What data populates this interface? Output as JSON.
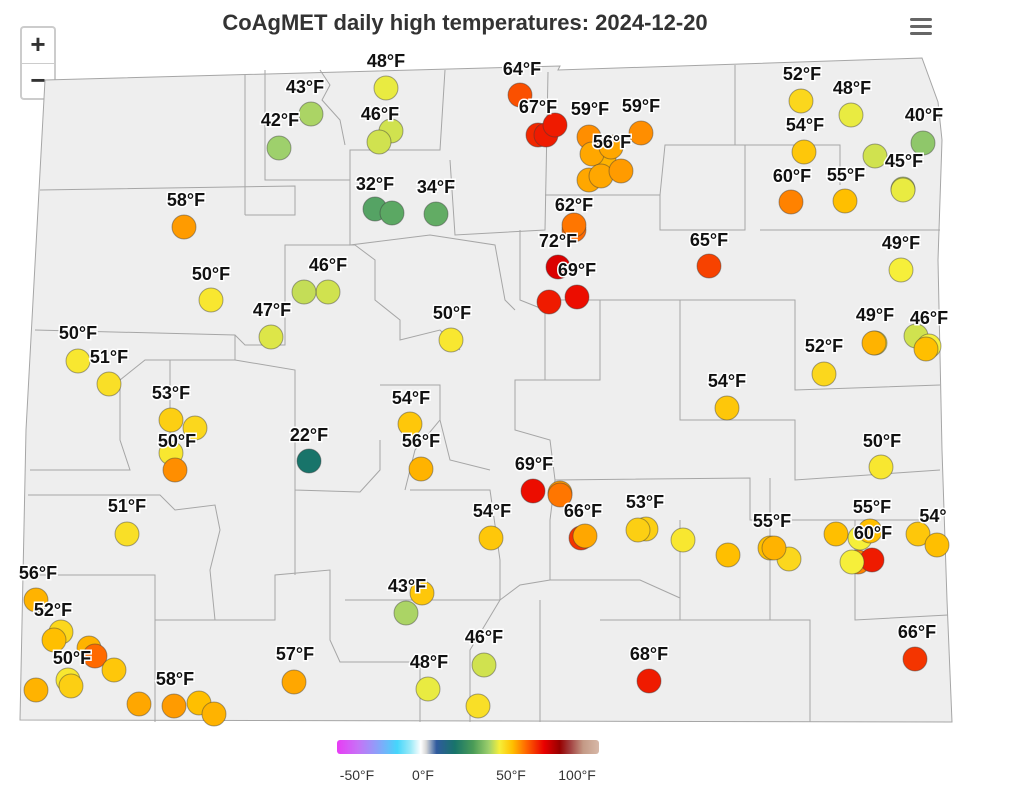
{
  "title": "CoAgMET daily high temperatures: 2024-12-20",
  "controls": {
    "zoom_in": "+",
    "zoom_out": "−",
    "menu_icon": "hamburger-menu-icon"
  },
  "legend": {
    "ticks": [
      "-50°F",
      "0°F",
      "50°F",
      "100°F"
    ]
  },
  "colors": {
    "background": "#ffffff",
    "county_fill": "#eeeeee",
    "county_border": "#a6a6a6"
  },
  "stations": [
    {
      "temp": 48,
      "label": "48°F"
    },
    {
      "temp": 43,
      "label": "43°F"
    },
    {
      "temp": 42,
      "label": "42°F"
    },
    {
      "temp": 46,
      "label": "46°F"
    },
    {
      "temp": 32,
      "label": "32°F"
    },
    {
      "temp": 34,
      "label": "34°F"
    },
    {
      "temp": 58,
      "label": "58°F"
    },
    {
      "temp": 64,
      "label": "64°F"
    },
    {
      "temp": 67,
      "label": "67°F"
    },
    {
      "temp": 59,
      "label": "59°F"
    },
    {
      "temp": 59,
      "label": "59°F"
    },
    {
      "temp": 56,
      "label": "56°F"
    },
    {
      "temp": 62,
      "label": "62°F"
    },
    {
      "temp": 72,
      "label": "72°F"
    },
    {
      "temp": 69,
      "label": "69°F"
    },
    {
      "temp": 65,
      "label": "65°F"
    },
    {
      "temp": 52,
      "label": "52°F"
    },
    {
      "temp": 48,
      "label": "48°F"
    },
    {
      "temp": 40,
      "label": "40°F"
    },
    {
      "temp": 54,
      "label": "54°F"
    },
    {
      "temp": 60,
      "label": "60°F"
    },
    {
      "temp": 55,
      "label": "55°F"
    },
    {
      "temp": 45,
      "label": "45°F"
    },
    {
      "temp": 49,
      "label": "49°F"
    },
    {
      "temp": 50,
      "label": "50°F"
    },
    {
      "temp": 46,
      "label": "46°F"
    },
    {
      "temp": 47,
      "label": "47°F"
    },
    {
      "temp": 50,
      "label": "50°F"
    },
    {
      "temp": 50,
      "label": "50°F"
    },
    {
      "temp": 51,
      "label": "51°F"
    },
    {
      "temp": 53,
      "label": "53°F"
    },
    {
      "temp": 50,
      "label": "50°F"
    },
    {
      "temp": 22,
      "label": "22°F"
    },
    {
      "temp": 54,
      "label": "54°F"
    },
    {
      "temp": 56,
      "label": "56°F"
    },
    {
      "temp": 69,
      "label": "69°F"
    },
    {
      "temp": 49,
      "label": "49°F"
    },
    {
      "temp": 46,
      "label": "46°F"
    },
    {
      "temp": 52,
      "label": "52°F"
    },
    {
      "temp": 54,
      "label": "54°F"
    },
    {
      "temp": 50,
      "label": "50°F"
    },
    {
      "temp": 51,
      "label": "51°F"
    },
    {
      "temp": 54,
      "label": "54°F"
    },
    {
      "temp": 66,
      "label": "66°F"
    },
    {
      "temp": 53,
      "label": "53°F"
    },
    {
      "temp": 55,
      "label": "55°F"
    },
    {
      "temp": 55,
      "label": "55°F"
    },
    {
      "temp": 60,
      "label": "60°F"
    },
    {
      "temp": 54,
      "label": "54°"
    },
    {
      "temp": 56,
      "label": "56°F"
    },
    {
      "temp": 52,
      "label": "52°F"
    },
    {
      "temp": 50,
      "label": "50°F"
    },
    {
      "temp": 58,
      "label": "58°F"
    },
    {
      "temp": 57,
      "label": "57°F"
    },
    {
      "temp": 43,
      "label": "43°F"
    },
    {
      "temp": 48,
      "label": "48°F"
    },
    {
      "temp": 46,
      "label": "46°F"
    },
    {
      "temp": 68,
      "label": "68°F"
    },
    {
      "temp": 66,
      "label": "66°F"
    },
    {
      "temp": 45
    },
    {
      "temp": 46
    },
    {
      "temp": 33
    },
    {
      "temp": 68
    },
    {
      "temp": 57
    },
    {
      "temp": 57
    },
    {
      "temp": 57
    },
    {
      "temp": 58
    },
    {
      "temp": 57
    },
    {
      "temp": 68
    },
    {
      "temp": 68
    },
    {
      "temp": 61
    },
    {
      "temp": 49
    },
    {
      "temp": 46
    },
    {
      "temp": 48
    },
    {
      "temp": 49
    },
    {
      "temp": 52
    },
    {
      "temp": 59
    },
    {
      "temp": 50
    },
    {
      "temp": 55
    },
    {
      "temp": 52
    },
    {
      "temp": 68
    },
    {
      "temp": 55
    },
    {
      "temp": 57
    },
    {
      "temp": 55
    },
    {
      "temp": 56
    },
    {
      "temp": 56
    },
    {
      "temp": 55
    },
    {
      "temp": 56
    },
    {
      "temp": 62
    },
    {
      "temp": 54
    },
    {
      "temp": 53
    },
    {
      "temp": 51
    },
    {
      "temp": 54
    },
    {
      "temp": 55
    },
    {
      "temp": 56
    },
    {
      "temp": 49
    },
    {
      "temp": 53
    },
    {
      "temp": 57
    },
    {
      "temp": 58
    },
    {
      "temp": 61
    },
    {
      "temp": 56
    },
    {
      "temp": 55
    },
    {
      "temp": 46
    },
    {
      "temp": 49
    }
  ]
}
